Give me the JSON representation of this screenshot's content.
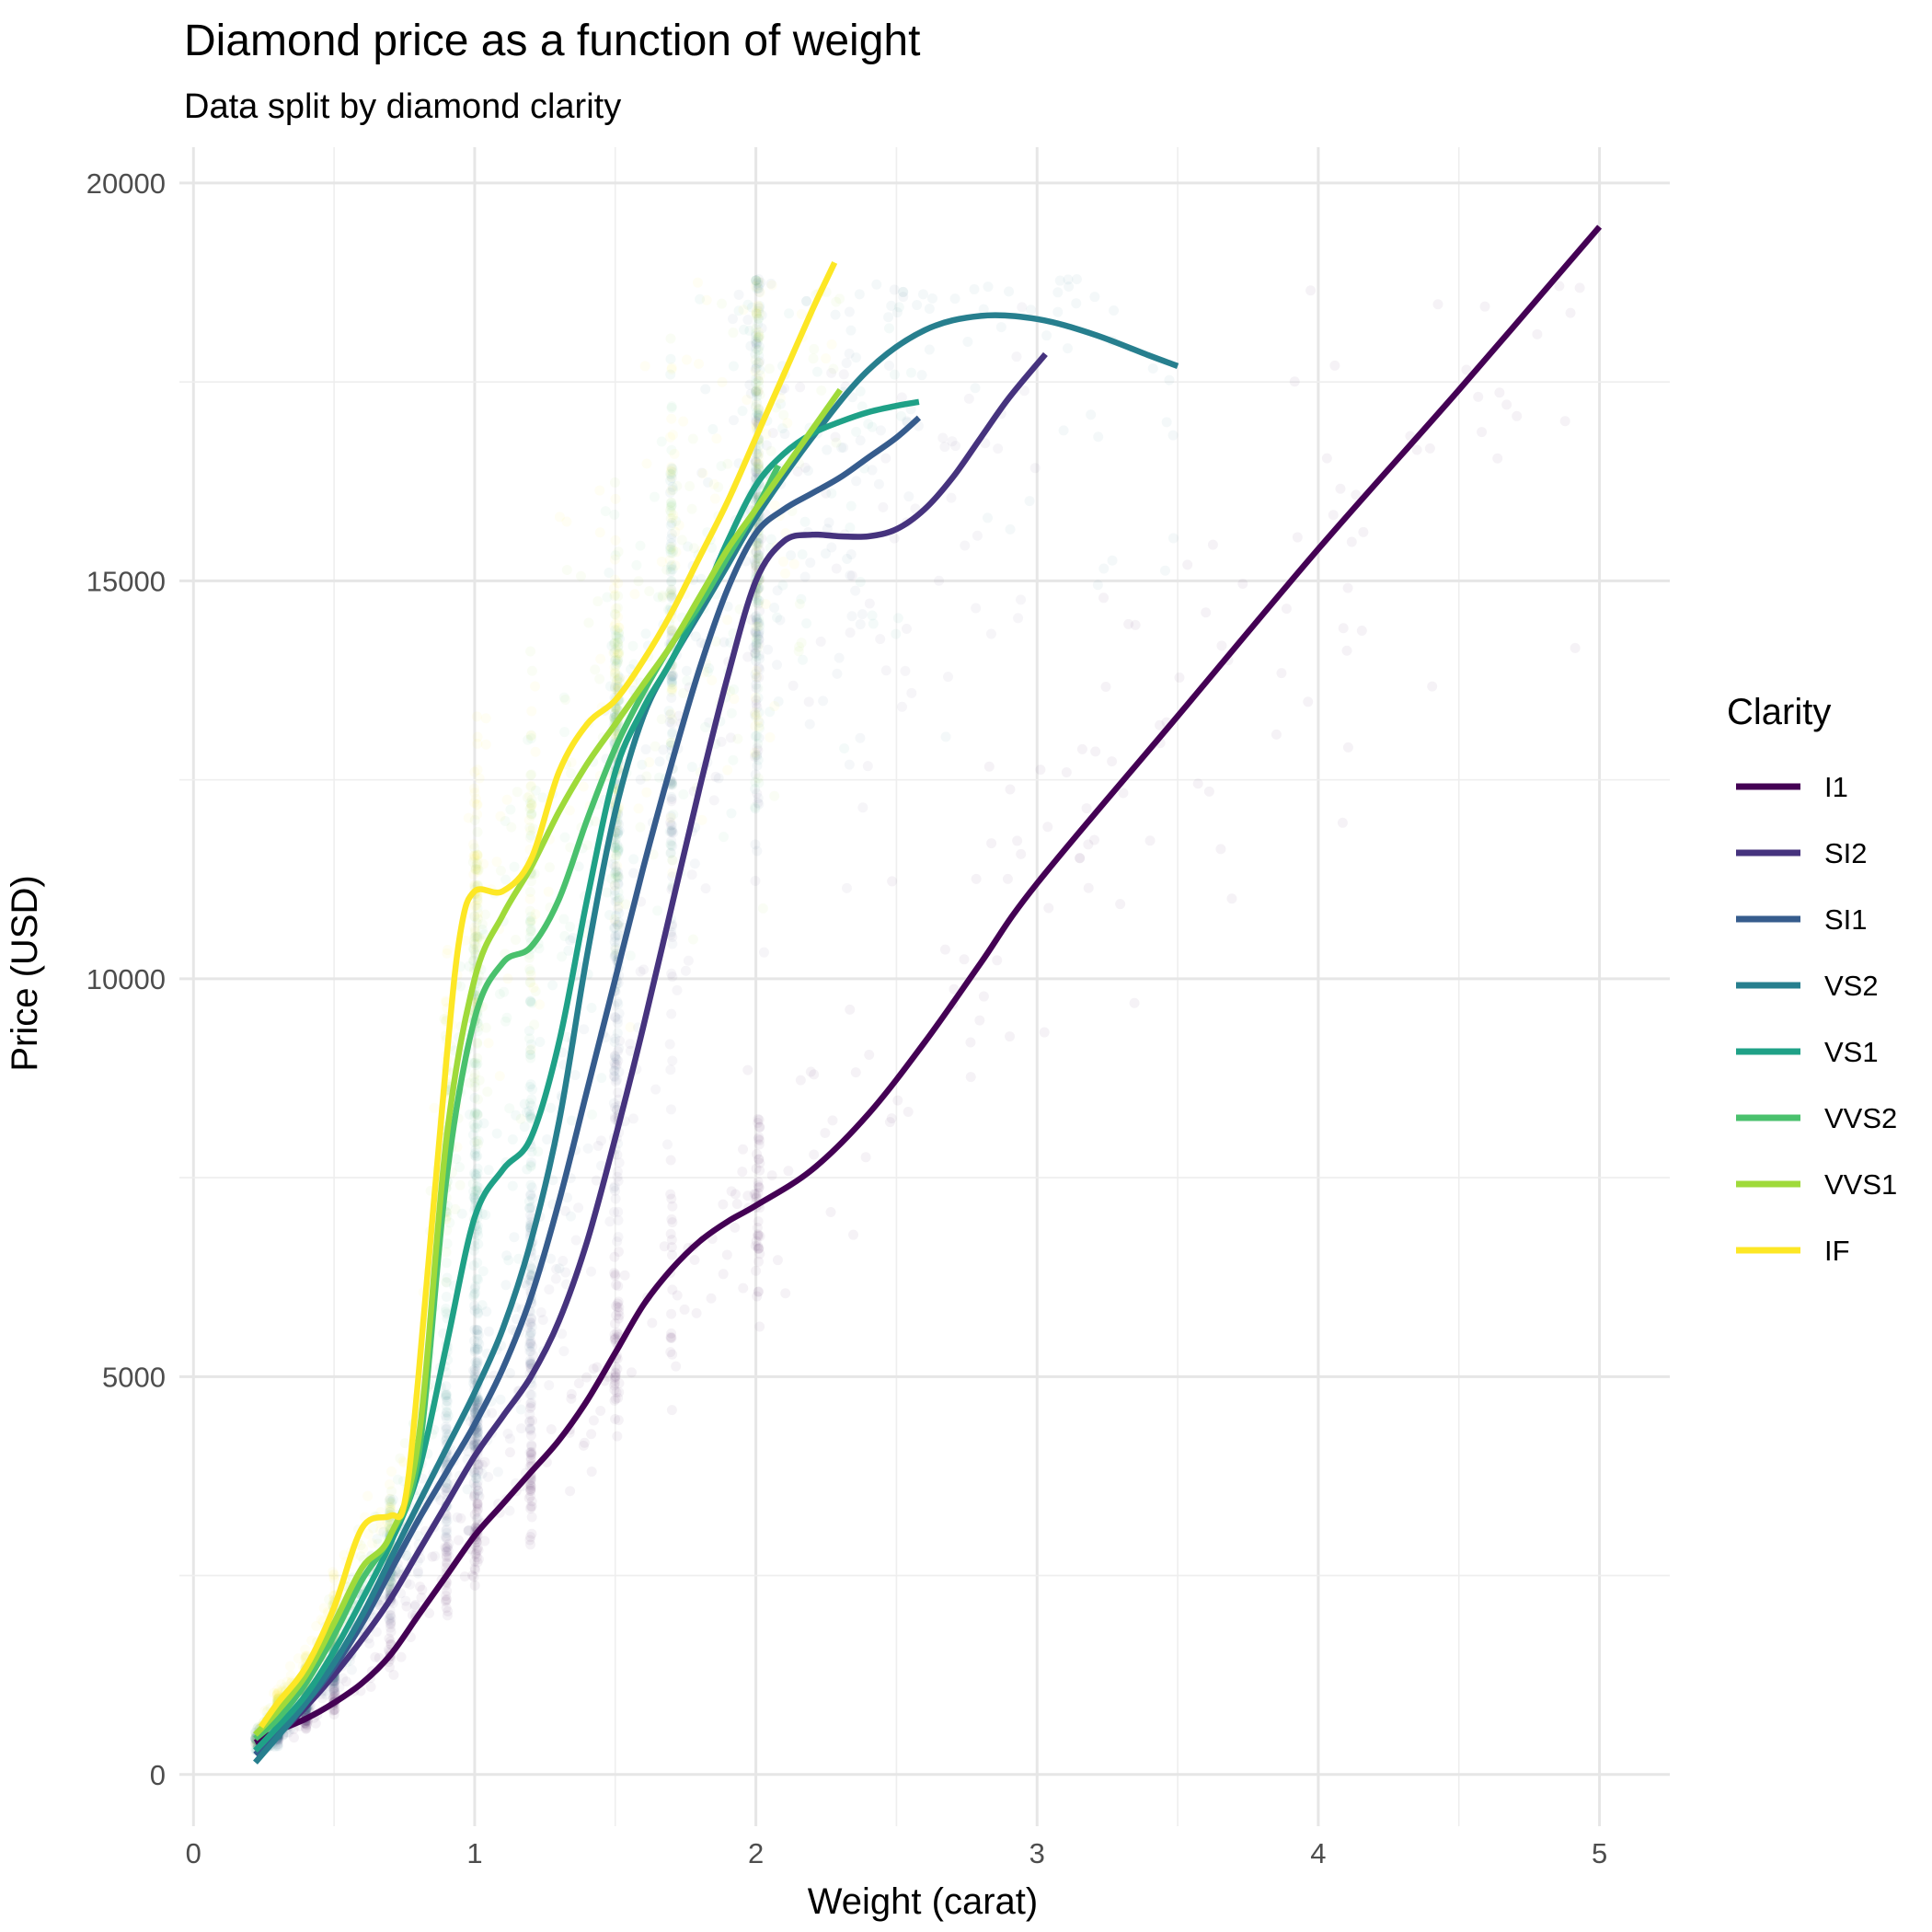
{
  "chart_data": {
    "type": "scatter",
    "title": "Diamond price as a function of weight",
    "subtitle": "Data split by diamond clarity",
    "xlabel": "Weight (carat)",
    "ylabel": "Price (USD)",
    "xlim": [
      -0.05,
      5.25
    ],
    "ylim": [
      -650,
      20450
    ],
    "x_ticks": [
      0,
      1,
      2,
      3,
      4,
      5
    ],
    "x_tick_labels": [
      "0",
      "1",
      "2",
      "3",
      "4",
      "5"
    ],
    "y_ticks": [
      0,
      5000,
      10000,
      15000,
      20000
    ],
    "y_tick_labels": [
      "0",
      "5000",
      "10000",
      "15000",
      "20000"
    ],
    "grid": true,
    "legend": {
      "title": "Clarity",
      "position": "right"
    },
    "series": [
      {
        "name": "I1",
        "color": "#440154",
        "points": [
          [
            0.22,
            400
          ],
          [
            0.3,
            550
          ],
          [
            0.4,
            700
          ],
          [
            0.5,
            900
          ],
          [
            0.6,
            1150
          ],
          [
            0.7,
            1500
          ],
          [
            0.8,
            2000
          ],
          [
            0.9,
            2500
          ],
          [
            1.0,
            3000
          ],
          [
            1.1,
            3400
          ],
          [
            1.2,
            3800
          ],
          [
            1.3,
            4200
          ],
          [
            1.4,
            4700
          ],
          [
            1.5,
            5300
          ],
          [
            1.6,
            5900
          ],
          [
            1.7,
            6350
          ],
          [
            1.8,
            6700
          ],
          [
            1.9,
            6950
          ],
          [
            2.0,
            7150
          ],
          [
            2.2,
            7600
          ],
          [
            2.4,
            8300
          ],
          [
            2.6,
            9200
          ],
          [
            2.8,
            10200
          ],
          [
            3.0,
            11200
          ],
          [
            3.5,
            13300
          ],
          [
            4.0,
            15400
          ],
          [
            4.5,
            17400
          ],
          [
            5.0,
            19450
          ]
        ]
      },
      {
        "name": "SI2",
        "color": "#46337E",
        "points": [
          [
            0.22,
            300
          ],
          [
            0.3,
            500
          ],
          [
            0.4,
            850
          ],
          [
            0.5,
            1250
          ],
          [
            0.6,
            1700
          ],
          [
            0.7,
            2200
          ],
          [
            0.8,
            2800
          ],
          [
            0.9,
            3400
          ],
          [
            1.0,
            4000
          ],
          [
            1.1,
            4500
          ],
          [
            1.2,
            5000
          ],
          [
            1.3,
            5700
          ],
          [
            1.4,
            6700
          ],
          [
            1.5,
            8000
          ],
          [
            1.6,
            9400
          ],
          [
            1.7,
            10900
          ],
          [
            1.8,
            12400
          ],
          [
            1.9,
            13800
          ],
          [
            2.0,
            15000
          ],
          [
            2.1,
            15500
          ],
          [
            2.2,
            15580
          ],
          [
            2.3,
            15560
          ],
          [
            2.4,
            15560
          ],
          [
            2.5,
            15650
          ],
          [
            2.6,
            15900
          ],
          [
            2.7,
            16300
          ],
          [
            2.8,
            16800
          ],
          [
            2.9,
            17300
          ],
          [
            3.03,
            17850
          ]
        ]
      },
      {
        "name": "SI1",
        "color": "#365C8D",
        "points": [
          [
            0.22,
            250
          ],
          [
            0.3,
            520
          ],
          [
            0.4,
            900
          ],
          [
            0.5,
            1350
          ],
          [
            0.6,
            1900
          ],
          [
            0.7,
            2550
          ],
          [
            0.8,
            3200
          ],
          [
            0.9,
            3800
          ],
          [
            1.0,
            4400
          ],
          [
            1.1,
            5100
          ],
          [
            1.2,
            6000
          ],
          [
            1.3,
            7200
          ],
          [
            1.4,
            8600
          ],
          [
            1.5,
            10000
          ],
          [
            1.6,
            11400
          ],
          [
            1.7,
            12700
          ],
          [
            1.8,
            13900
          ],
          [
            1.9,
            14900
          ],
          [
            2.0,
            15600
          ],
          [
            2.1,
            15900
          ],
          [
            2.2,
            16100
          ],
          [
            2.3,
            16300
          ],
          [
            2.4,
            16550
          ],
          [
            2.5,
            16800
          ],
          [
            2.58,
            17050
          ]
        ]
      },
      {
        "name": "VS2",
        "color": "#277F8E",
        "points": [
          [
            0.22,
            150
          ],
          [
            0.3,
            480
          ],
          [
            0.4,
            900
          ],
          [
            0.5,
            1400
          ],
          [
            0.6,
            2000
          ],
          [
            0.7,
            2700
          ],
          [
            0.8,
            3400
          ],
          [
            0.9,
            4100
          ],
          [
            1.0,
            4800
          ],
          [
            1.1,
            5600
          ],
          [
            1.2,
            6700
          ],
          [
            1.3,
            8200
          ],
          [
            1.4,
            10300
          ],
          [
            1.5,
            12100
          ],
          [
            1.6,
            13300
          ],
          [
            1.7,
            14000
          ],
          [
            1.8,
            14600
          ],
          [
            1.9,
            15200
          ],
          [
            2.0,
            15800
          ],
          [
            2.2,
            16800
          ],
          [
            2.4,
            17650
          ],
          [
            2.6,
            18150
          ],
          [
            2.8,
            18330
          ],
          [
            3.0,
            18290
          ],
          [
            3.2,
            18100
          ],
          [
            3.4,
            17830
          ],
          [
            3.5,
            17700
          ]
        ]
      },
      {
        "name": "VS1",
        "color": "#1FA187",
        "points": [
          [
            0.22,
            300
          ],
          [
            0.3,
            600
          ],
          [
            0.4,
            1000
          ],
          [
            0.5,
            1550
          ],
          [
            0.6,
            2200
          ],
          [
            0.7,
            2900
          ],
          [
            0.8,
            3800
          ],
          [
            0.9,
            5400
          ],
          [
            1.0,
            7000
          ],
          [
            1.1,
            7600
          ],
          [
            1.2,
            8000
          ],
          [
            1.3,
            9200
          ],
          [
            1.4,
            11000
          ],
          [
            1.5,
            12600
          ],
          [
            1.6,
            13400
          ],
          [
            1.7,
            14000
          ],
          [
            1.8,
            14700
          ],
          [
            1.9,
            15500
          ],
          [
            2.0,
            16200
          ],
          [
            2.1,
            16600
          ],
          [
            2.2,
            16850
          ],
          [
            2.3,
            17000
          ],
          [
            2.4,
            17120
          ],
          [
            2.5,
            17200
          ],
          [
            2.58,
            17250
          ]
        ]
      },
      {
        "name": "VVS2",
        "color": "#4AC16D",
        "points": [
          [
            0.22,
            450
          ],
          [
            0.3,
            700
          ],
          [
            0.4,
            1150
          ],
          [
            0.5,
            1750
          ],
          [
            0.6,
            2450
          ],
          [
            0.7,
            3000
          ],
          [
            0.8,
            4000
          ],
          [
            0.9,
            7500
          ],
          [
            1.0,
            9500
          ],
          [
            1.1,
            10200
          ],
          [
            1.2,
            10400
          ],
          [
            1.3,
            11000
          ],
          [
            1.4,
            12000
          ],
          [
            1.5,
            12900
          ],
          [
            1.6,
            13600
          ],
          [
            1.7,
            14200
          ],
          [
            1.8,
            14700
          ],
          [
            1.9,
            15300
          ],
          [
            2.0,
            15900
          ],
          [
            2.08,
            16450
          ]
        ]
      },
      {
        "name": "VVS1",
        "color": "#9FDA3A",
        "points": [
          [
            0.22,
            500
          ],
          [
            0.3,
            800
          ],
          [
            0.4,
            1250
          ],
          [
            0.5,
            1900
          ],
          [
            0.6,
            2600
          ],
          [
            0.7,
            3000
          ],
          [
            0.8,
            4200
          ],
          [
            0.9,
            8000
          ],
          [
            1.0,
            10000
          ],
          [
            1.1,
            10800
          ],
          [
            1.2,
            11400
          ],
          [
            1.3,
            12100
          ],
          [
            1.4,
            12700
          ],
          [
            1.5,
            13200
          ],
          [
            1.6,
            13700
          ],
          [
            1.7,
            14200
          ],
          [
            1.8,
            14800
          ],
          [
            1.9,
            15400
          ],
          [
            2.0,
            15900
          ],
          [
            2.1,
            16400
          ],
          [
            2.2,
            16900
          ],
          [
            2.3,
            17400
          ]
        ]
      },
      {
        "name": "IF",
        "color": "#FDE725",
        "points": [
          [
            0.24,
            600
          ],
          [
            0.3,
            900
          ],
          [
            0.4,
            1350
          ],
          [
            0.5,
            2100
          ],
          [
            0.6,
            3100
          ],
          [
            0.7,
            3250
          ],
          [
            0.75,
            3400
          ],
          [
            0.8,
            5000
          ],
          [
            0.9,
            9000
          ],
          [
            0.95,
            10600
          ],
          [
            1.0,
            11100
          ],
          [
            1.1,
            11100
          ],
          [
            1.2,
            11500
          ],
          [
            1.3,
            12600
          ],
          [
            1.4,
            13200
          ],
          [
            1.5,
            13500
          ],
          [
            1.6,
            14000
          ],
          [
            1.7,
            14600
          ],
          [
            1.8,
            15300
          ],
          [
            1.9,
            16000
          ],
          [
            2.0,
            16800
          ],
          [
            2.1,
            17600
          ],
          [
            2.2,
            18400
          ],
          [
            2.28,
            19000
          ]
        ]
      }
    ]
  }
}
